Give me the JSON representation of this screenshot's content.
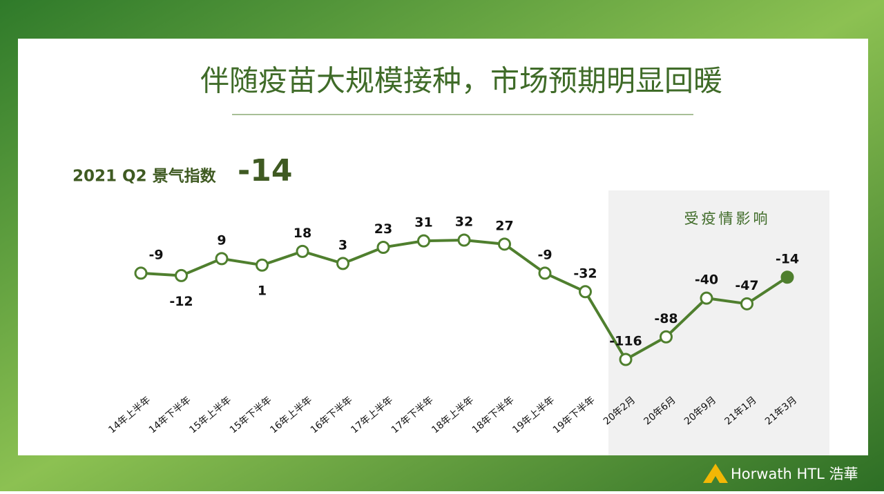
{
  "title": "伴随疫苗大规模接种，市场预期明显回暖",
  "headline": {
    "label": "2021 Q2 景气指数",
    "value": "-14"
  },
  "chart_data": {
    "type": "line",
    "categories": [
      "14年上半年",
      "14年下半年",
      "15年上半年",
      "15年下半年",
      "16年上半年",
      "16年下半年",
      "17年上半年",
      "17年下半年",
      "18年上半年",
      "18年下半年",
      "19年上半年",
      "19年下半年",
      "20年2月",
      "20年6月",
      "20年9月",
      "21年1月",
      "21年3月"
    ],
    "series": [
      {
        "name": "景气指数",
        "color": "#4f7f2e",
        "values": [
          -9,
          -12,
          9,
          1,
          18,
          3,
          23,
          31,
          32,
          27,
          -9,
          -32,
          -116,
          -88,
          -40,
          -47,
          -14
        ]
      }
    ],
    "shaded_region": {
      "label": "受疫情影响",
      "from": "20年2月",
      "to": "21年3月"
    },
    "filled_point": "21年3月"
  },
  "logo": "Horwath HTL 浩華"
}
